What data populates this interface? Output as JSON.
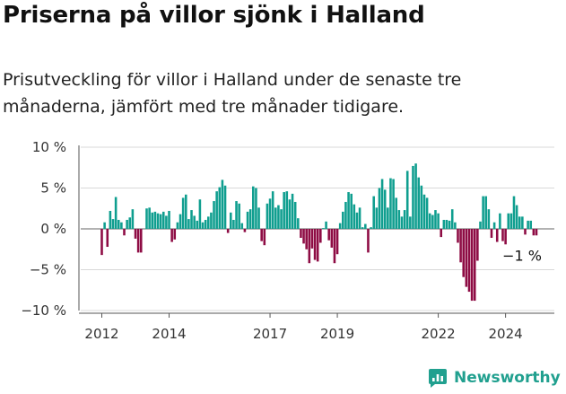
{
  "chart_data": {
    "type": "bar",
    "title": "Priserna på villor sjönk i Halland",
    "subtitle": "Prisutveckling för villor i Halland under de senaste tre månaderna, jämfört med tre månader tidigare.",
    "ylim": [
      -10,
      10
    ],
    "y_ticks": [
      {
        "value": 10,
        "label": "10 %"
      },
      {
        "value": 5,
        "label": "5 %"
      },
      {
        "value": 0,
        "label": "0 %"
      },
      {
        "value": -5,
        "label": "−5 %"
      },
      {
        "value": -10,
        "label": "−10 %"
      }
    ],
    "x_ticks": [
      {
        "year": 2012,
        "label": "2012"
      },
      {
        "year": 2014,
        "label": "2014"
      },
      {
        "year": 2017,
        "label": "2017"
      },
      {
        "year": 2019,
        "label": "2019"
      },
      {
        "year": 2022,
        "label": "2022"
      },
      {
        "year": 2024,
        "label": "2024"
      }
    ],
    "start_year": 2012,
    "months_per_bar": 1,
    "values": [
      -3.2,
      0.8,
      -2.2,
      2.2,
      1.2,
      3.9,
      1.1,
      0.8,
      -0.8,
      1.1,
      1.4,
      2.4,
      -1.2,
      -2.9,
      -2.9,
      0,
      2.5,
      2.6,
      2.0,
      2.1,
      1.9,
      1.8,
      2.1,
      1.6,
      2.2,
      -1.6,
      -1.3,
      0.8,
      1.8,
      3.8,
      4.2,
      1.2,
      2.3,
      1.6,
      1.0,
      3.6,
      0.8,
      1.1,
      1.5,
      2.0,
      3.4,
      4.6,
      5.1,
      6.0,
      5.3,
      -0.5,
      2.0,
      1.1,
      3.4,
      3.1,
      0.7,
      -0.4,
      2.1,
      2.4,
      5.2,
      5.0,
      2.6,
      -1.5,
      -2.0,
      3.1,
      3.7,
      4.6,
      2.6,
      2.9,
      2.4,
      4.5,
      4.6,
      3.6,
      4.3,
      3.3,
      1.3,
      -1.1,
      -1.8,
      -2.5,
      -4.2,
      -2.4,
      -3.8,
      -4.0,
      -1.7,
      0.1,
      0.9,
      -1.4,
      -2.3,
      -4.2,
      -3.1,
      0.7,
      2.1,
      3.3,
      4.5,
      4.3,
      3.0,
      2.0,
      2.6,
      0.2,
      0.6,
      -2.9,
      0.2,
      4.0,
      2.6,
      5.0,
      6.1,
      4.8,
      2.6,
      6.2,
      6.1,
      3.8,
      2.3,
      1.5,
      2.3,
      7.1,
      1.5,
      7.7,
      8.0,
      6.3,
      5.3,
      4.2,
      3.8,
      1.9,
      1.7,
      2.3,
      1.9,
      -1.0,
      1.1,
      1.1,
      1.0,
      2.4,
      0.8,
      -1.7,
      -4.1,
      -5.9,
      -7.1,
      -7.7,
      -8.8,
      -8.8,
      -3.9,
      0.9,
      4.0,
      4.0,
      2.4,
      -1.1,
      0.8,
      -1.6,
      1.9,
      -1.5,
      -1.9,
      1.9,
      1.9,
      4.0,
      2.9,
      1.5,
      1.5,
      -0.7,
      1.0,
      1.0,
      -0.8,
      -0.8
    ],
    "positive_color": "#0f9e8f",
    "negative_color": "#8e0c44",
    "last_label": "−1 %"
  },
  "brand": {
    "name": "Newsworthy",
    "color": "#21a08f",
    "icon": "newsworthy-chart-icon"
  }
}
